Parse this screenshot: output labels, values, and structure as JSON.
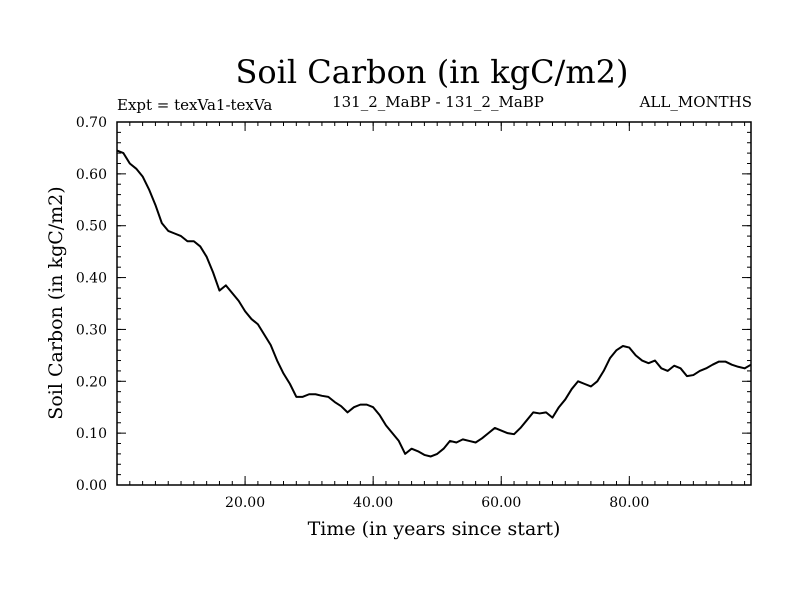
{
  "chart_data": {
    "type": "line",
    "title": "Soil Carbon (in kgC/m2)",
    "subtitle_left": "Expt = texVa1-texVa",
    "subtitle_center": "131_2_MaBP - 131_2_MaBP",
    "subtitle_right": "ALL_MONTHS",
    "xlabel": "Time (in years since start)",
    "ylabel": "Soil Carbon (in kgC/m2)",
    "xlim": [
      0,
      99
    ],
    "ylim": [
      0,
      0.7
    ],
    "x_ticks": [
      {
        "value": 20,
        "label": "20.00"
      },
      {
        "value": 40,
        "label": "40.00"
      },
      {
        "value": 60,
        "label": "60.00"
      },
      {
        "value": 80,
        "label": "80.00"
      }
    ],
    "y_ticks": [
      {
        "value": 0.0,
        "label": "0.00"
      },
      {
        "value": 0.1,
        "label": "0.10"
      },
      {
        "value": 0.2,
        "label": "0.20"
      },
      {
        "value": 0.3,
        "label": "0.30"
      },
      {
        "value": 0.4,
        "label": "0.40"
      },
      {
        "value": 0.5,
        "label": "0.50"
      },
      {
        "value": 0.6,
        "label": "0.60"
      },
      {
        "value": 0.7,
        "label": "0.70"
      }
    ],
    "grid": false,
    "line_color": "#000000",
    "series": [
      {
        "name": "Soil Carbon",
        "x": [
          0,
          1,
          2,
          3,
          4,
          5,
          6,
          7,
          8,
          9,
          10,
          11,
          12,
          13,
          14,
          15,
          16,
          17,
          18,
          19,
          20,
          21,
          22,
          23,
          24,
          25,
          26,
          27,
          28,
          29,
          30,
          31,
          32,
          33,
          34,
          35,
          36,
          37,
          38,
          39,
          40,
          41,
          42,
          43,
          44,
          45,
          46,
          47,
          48,
          49,
          50,
          51,
          52,
          53,
          54,
          55,
          56,
          57,
          58,
          59,
          60,
          61,
          62,
          63,
          64,
          65,
          66,
          67,
          68,
          69,
          70,
          71,
          72,
          73,
          74,
          75,
          76,
          77,
          78,
          79,
          80,
          81,
          82,
          83,
          84,
          85,
          86,
          87,
          88,
          89,
          90,
          91,
          92,
          93,
          94,
          95,
          96,
          97,
          98,
          99
        ],
        "values": [
          0.645,
          0.64,
          0.62,
          0.61,
          0.595,
          0.57,
          0.54,
          0.505,
          0.49,
          0.485,
          0.48,
          0.47,
          0.47,
          0.46,
          0.44,
          0.41,
          0.375,
          0.385,
          0.37,
          0.355,
          0.335,
          0.32,
          0.31,
          0.29,
          0.27,
          0.24,
          0.215,
          0.195,
          0.17,
          0.17,
          0.175,
          0.175,
          0.172,
          0.17,
          0.16,
          0.152,
          0.14,
          0.15,
          0.155,
          0.155,
          0.15,
          0.135,
          0.115,
          0.1,
          0.085,
          0.06,
          0.07,
          0.065,
          0.058,
          0.055,
          0.06,
          0.07,
          0.085,
          0.082,
          0.088,
          0.085,
          0.082,
          0.09,
          0.1,
          0.11,
          0.105,
          0.1,
          0.098,
          0.11,
          0.125,
          0.14,
          0.138,
          0.14,
          0.13,
          0.15,
          0.165,
          0.185,
          0.2,
          0.195,
          0.19,
          0.2,
          0.22,
          0.245,
          0.26,
          0.268,
          0.265,
          0.25,
          0.24,
          0.235,
          0.24,
          0.225,
          0.22,
          0.23,
          0.225,
          0.21,
          0.212,
          0.22,
          0.225,
          0.232,
          0.238,
          0.238,
          0.232,
          0.228,
          0.225,
          0.232
        ]
      }
    ]
  }
}
